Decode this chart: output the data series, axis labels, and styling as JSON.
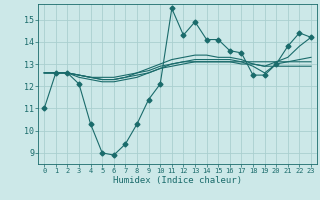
{
  "title": "",
  "xlabel": "Humidex (Indice chaleur)",
  "background_color": "#cce8e8",
  "grid_color": "#aacfcf",
  "line_color": "#1a6b6b",
  "xlim": [
    -0.5,
    23.5
  ],
  "ylim": [
    8.5,
    15.7
  ],
  "yticks": [
    9,
    10,
    11,
    12,
    13,
    14,
    15
  ],
  "xticks": [
    0,
    1,
    2,
    3,
    4,
    5,
    6,
    7,
    8,
    9,
    10,
    11,
    12,
    13,
    14,
    15,
    16,
    17,
    18,
    19,
    20,
    21,
    22,
    23
  ],
  "series": [
    [
      11.0,
      12.6,
      12.6,
      12.1,
      10.3,
      9.0,
      8.9,
      9.4,
      10.3,
      11.4,
      12.1,
      15.5,
      14.3,
      14.9,
      14.1,
      14.1,
      13.6,
      13.5,
      12.5,
      12.5,
      13.0,
      13.8,
      14.4,
      14.2
    ],
    [
      12.6,
      12.6,
      12.6,
      12.5,
      12.4,
      12.3,
      12.3,
      12.4,
      12.5,
      12.6,
      12.8,
      13.0,
      13.1,
      13.2,
      13.2,
      13.2,
      13.2,
      13.1,
      12.9,
      12.6,
      13.0,
      13.1,
      13.2,
      13.3
    ],
    [
      12.6,
      12.6,
      12.6,
      12.5,
      12.4,
      12.4,
      12.4,
      12.5,
      12.6,
      12.7,
      12.9,
      13.0,
      13.1,
      13.1,
      13.1,
      13.1,
      13.1,
      13.0,
      13.0,
      12.9,
      12.9,
      12.9,
      12.9,
      12.9
    ],
    [
      12.6,
      12.6,
      12.6,
      12.4,
      12.3,
      12.2,
      12.2,
      12.3,
      12.4,
      12.6,
      12.8,
      12.9,
      13.0,
      13.1,
      13.1,
      13.1,
      13.1,
      13.1,
      13.1,
      13.1,
      13.1,
      13.1,
      13.1,
      13.1
    ],
    [
      12.6,
      12.6,
      12.6,
      12.5,
      12.4,
      12.3,
      12.3,
      12.4,
      12.6,
      12.8,
      13.0,
      13.2,
      13.3,
      13.4,
      13.4,
      13.3,
      13.3,
      13.2,
      13.0,
      12.9,
      13.1,
      13.3,
      13.8,
      14.2
    ]
  ],
  "marker": "D",
  "markersize": 2.5
}
